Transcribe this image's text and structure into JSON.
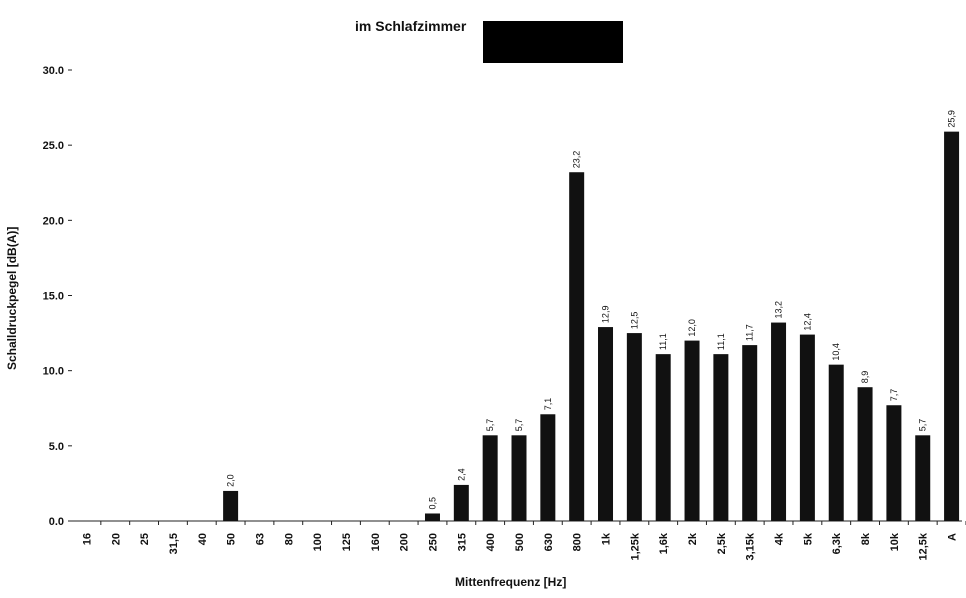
{
  "chart_data": {
    "type": "bar",
    "title": "im Schlafzimmer",
    "xlabel": "Mittenfrequenz [Hz]",
    "ylabel": "Schalldruckpegel [dB(A)]",
    "ylim": [
      0,
      30
    ],
    "yticks": [
      "0.0",
      "5.0",
      "10.0",
      "15.0",
      "20.0",
      "25.0",
      "30.0"
    ],
    "categories": [
      "16",
      "20",
      "25",
      "31,5",
      "40",
      "50",
      "63",
      "80",
      "100",
      "125",
      "160",
      "200",
      "250",
      "315",
      "400",
      "500",
      "630",
      "800",
      "1k",
      "1,25k",
      "1,6k",
      "2k",
      "2,5k",
      "3,15k",
      "4k",
      "5k",
      "6,3k",
      "8k",
      "10k",
      "12,5k",
      "A"
    ],
    "values": [
      null,
      null,
      null,
      null,
      null,
      2.0,
      null,
      null,
      null,
      null,
      null,
      null,
      0.5,
      2.4,
      5.7,
      5.7,
      7.1,
      23.2,
      12.9,
      12.5,
      11.1,
      12.0,
      11.1,
      11.7,
      13.2,
      12.4,
      10.4,
      8.9,
      7.7,
      5.7,
      25.9
    ],
    "data_labels": [
      null,
      null,
      null,
      null,
      null,
      "2,0",
      null,
      null,
      null,
      null,
      null,
      null,
      "0,5",
      "2,4",
      "5,7",
      "5,7",
      "7,1",
      "23,2",
      "12,9",
      "12,5",
      "11,1",
      "12,0",
      "11,1",
      "11,7",
      "13,2",
      "12,4",
      "10,4",
      "8,9",
      "7,7",
      "5,7",
      "25,9"
    ],
    "bar_color": "#111111",
    "grid": false,
    "legend": false
  }
}
